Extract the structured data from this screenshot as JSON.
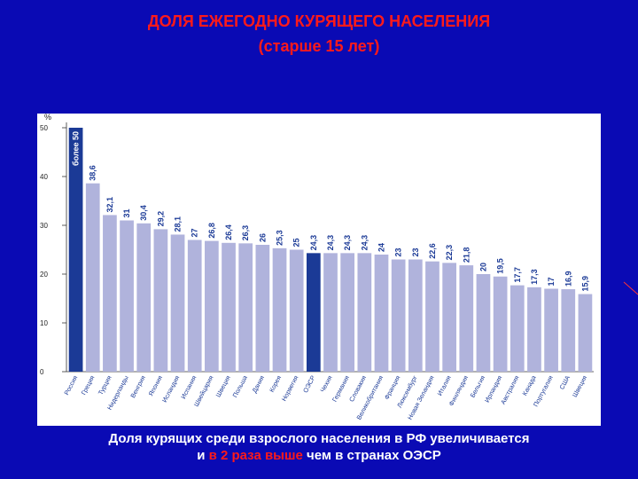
{
  "header": {
    "title_line1": "ДОЛЯ ЕЖЕГОДНО КУРЯЩЕГО НАСЕЛЕНИЯ",
    "title_line2": "(старше 15 лет)"
  },
  "footer": {
    "line1": "Доля курящих среди взрослого населения в РФ увеличивается",
    "line2_prefix": "и ",
    "line2_highlight": "в 2 раза выше",
    "line2_suffix": " чем в странах ОЭСР"
  },
  "colors": {
    "background": "#0a0ab4",
    "title": "#ff1a1a",
    "bar_default": "#b0b3dc",
    "bar_highlight": "#1b3a96",
    "bar_label": "#1b3a96",
    "bar_label_inside": "#ffffff"
  },
  "chart_data": {
    "type": "bar",
    "unit_label": "%",
    "ylim": [
      0,
      50
    ],
    "yticks": [
      0,
      10,
      20,
      30,
      40,
      50
    ],
    "grid": false,
    "categories": [
      "Россия",
      "Греция",
      "Турция",
      "Нидерланды",
      "Венгрия",
      "Япония",
      "Исландия",
      "Испания",
      "Швейцария",
      "Швеция",
      "Польша",
      "Дания",
      "Корея",
      "Норвегия",
      "ОЭСР",
      "Чехия",
      "Германия",
      "Словакия",
      "Великобритания",
      "Франция",
      "Люксембург",
      "Новая Зеландия",
      "Италия",
      "Финляндия",
      "Бельгия",
      "Ирландия",
      "Австралия",
      "Канада",
      "Португалия",
      "США",
      "Швеция"
    ],
    "values": [
      50,
      38.6,
      32.1,
      31,
      30.4,
      29.2,
      28.1,
      27,
      26.8,
      26.4,
      26.3,
      26,
      25.3,
      25,
      24.3,
      24.3,
      24.3,
      24.3,
      24,
      23,
      23,
      22.6,
      22.3,
      21.8,
      20,
      19.5,
      17.7,
      17.3,
      17,
      16.9,
      15.9
    ],
    "labels": [
      "более 50",
      "38,6",
      "32,1",
      "31",
      "30,4",
      "29,2",
      "28,1",
      "27",
      "26,8",
      "26,4",
      "26,3",
      "26",
      "25,3",
      "25",
      "24,3",
      "24,3",
      "24,3",
      "24,3",
      "24",
      "23",
      "23",
      "22,6",
      "22,3",
      "21,8",
      "20",
      "19,5",
      "17,7",
      "17,3",
      "17",
      "16,9",
      "15,9"
    ],
    "highlighted": [
      "Россия",
      "ОЭСР"
    ]
  }
}
